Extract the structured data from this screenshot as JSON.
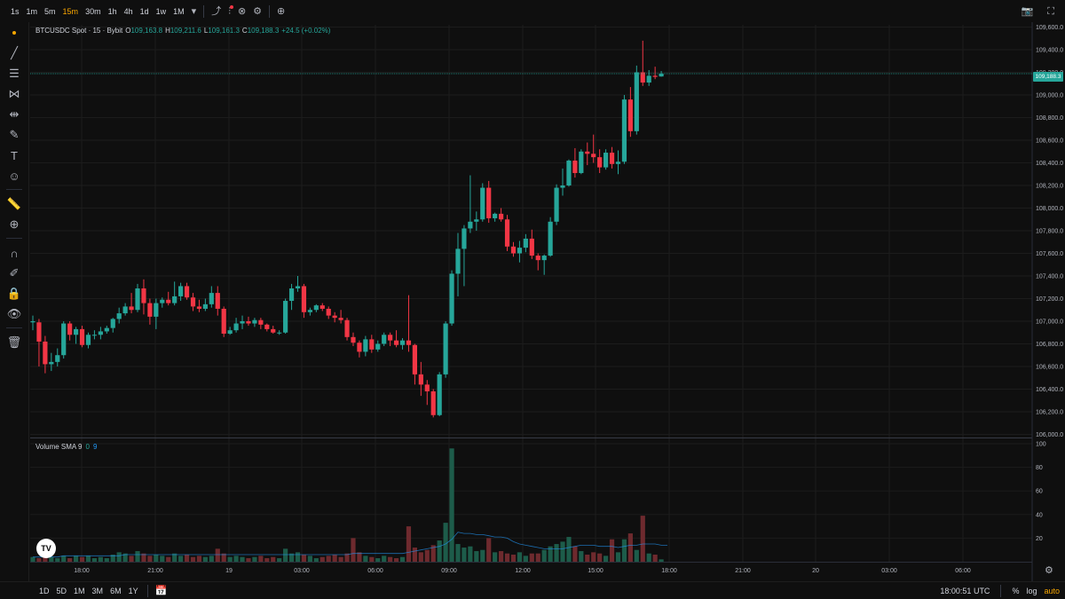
{
  "toolbar": {
    "timeframes": [
      "1s",
      "1m",
      "5m",
      "15m",
      "30m",
      "1h",
      "4h",
      "1d",
      "1w",
      "1M"
    ],
    "active_timeframe": "15m",
    "timeframe_dropdown_icon": "chevron-down-icon",
    "icons": [
      "chart-type-icon",
      "indicators-icon",
      "compare-icon",
      "settings-icon",
      "add-icon"
    ],
    "right_icons": [
      "camera-icon",
      "fullscreen-icon"
    ]
  },
  "left_tools": [
    "crosshair-dot",
    "trend-line-icon",
    "fib-icon",
    "pattern-icon",
    "measure-icon",
    "brush-icon",
    "text-icon",
    "emoji-icon",
    "ruler-icon",
    "zoom-in-icon",
    "magnet-icon",
    "lock-draw-icon",
    "lock-icon",
    "eye-icon",
    "trash-icon"
  ],
  "legend": {
    "symbol": "BTCUSDC Spot · 15 · Bybit",
    "o_label": "O",
    "o_value": "109,163.8",
    "h_label": "H",
    "h_value": "109,211.6",
    "l_label": "L",
    "l_value": "109,161.3",
    "c_label": "C",
    "c_value": "109,188.3",
    "change": "+24.5 (+0.02%)"
  },
  "volume_legend": {
    "label": "Volume SMA 9",
    "v1": "0",
    "v2": "9"
  },
  "current_price": "109,188.3",
  "colors": {
    "up": "#26a69a",
    "down": "#f23645",
    "accent": "#f7a600",
    "sma": "#2196f3"
  },
  "bottom": {
    "ranges": [
      "1D",
      "5D",
      "1M",
      "3M",
      "6M",
      "1Y"
    ],
    "time": "18:00:51 UTC",
    "percent": "%",
    "log": "log",
    "auto": "auto"
  },
  "chart_data": {
    "type": "candlestick",
    "price_axis": {
      "ticks": [
        "109,600.0",
        "109,400.0",
        "109,200.0",
        "109,000.0",
        "108,800.0",
        "108,600.0",
        "108,400.0",
        "108,200.0",
        "108,000.0",
        "107,800.0",
        "107,600.0",
        "107,400.0",
        "107,200.0",
        "107,000.0",
        "106,800.0",
        "106,600.0",
        "106,400.0",
        "106,200.0",
        "106,000.0"
      ],
      "range": [
        105980,
        109620
      ]
    },
    "volume_axis": {
      "ticks": [
        "100",
        "80",
        "60",
        "40",
        "20"
      ],
      "range": [
        0,
        100
      ]
    },
    "time_axis": [
      "18:00",
      "21:00",
      "19",
      "03:00",
      "06:00",
      "09:00",
      "12:00",
      "15:00",
      "18:00",
      "21:00",
      "20",
      "03:00",
      "06:00"
    ],
    "candles": [
      [
        106990,
        107050,
        106920,
        107000,
        4
      ],
      [
        106990,
        107020,
        106600,
        106820,
        3
      ],
      [
        106820,
        106870,
        106540,
        106620,
        5
      ],
      [
        106620,
        106720,
        106560,
        106640,
        4
      ],
      [
        106640,
        106760,
        106600,
        106700,
        3
      ],
      [
        106700,
        107000,
        106670,
        106980,
        5
      ],
      [
        106980,
        107000,
        106830,
        106880,
        3
      ],
      [
        106880,
        106950,
        106800,
        106930,
        5
      ],
      [
        106930,
        106960,
        106770,
        106790,
        4
      ],
      [
        106790,
        106900,
        106760,
        106880,
        5
      ],
      [
        106880,
        106920,
        106840,
        106880,
        3
      ],
      [
        106880,
        106950,
        106840,
        106910,
        4
      ],
      [
        106910,
        106960,
        106890,
        106940,
        3
      ],
      [
        106940,
        107030,
        106900,
        107020,
        6
      ],
      [
        107020,
        107120,
        106980,
        107070,
        8
      ],
      [
        107070,
        107160,
        107050,
        107130,
        7
      ],
      [
        107130,
        107250,
        107070,
        107100,
        5
      ],
      [
        107100,
        107330,
        107080,
        107290,
        9
      ],
      [
        107290,
        107370,
        107060,
        107160,
        7
      ],
      [
        107160,
        107200,
        106970,
        107040,
        5
      ],
      [
        107040,
        107200,
        106930,
        107160,
        6
      ],
      [
        107160,
        107210,
        107120,
        107190,
        5
      ],
      [
        107190,
        107260,
        107140,
        107160,
        4
      ],
      [
        107160,
        107350,
        107140,
        107220,
        7
      ],
      [
        107220,
        107340,
        107180,
        107310,
        5
      ],
      [
        107310,
        107340,
        107190,
        107210,
        6
      ],
      [
        107210,
        107250,
        107090,
        107130,
        4
      ],
      [
        107130,
        107190,
        107080,
        107110,
        5
      ],
      [
        107110,
        107200,
        107090,
        107150,
        4
      ],
      [
        107150,
        107310,
        107120,
        107250,
        5
      ],
      [
        107250,
        107310,
        107050,
        107110,
        11
      ],
      [
        107110,
        107130,
        106860,
        106890,
        7
      ],
      [
        106890,
        106950,
        106880,
        106920,
        4
      ],
      [
        106920,
        107030,
        106900,
        106980,
        5
      ],
      [
        106980,
        107050,
        106930,
        107000,
        4
      ],
      [
        107000,
        107040,
        106960,
        106980,
        3
      ],
      [
        106980,
        107030,
        106950,
        107010,
        4
      ],
      [
        107010,
        107030,
        106930,
        106970,
        5
      ],
      [
        106970,
        106980,
        106910,
        106930,
        3
      ],
      [
        106930,
        106960,
        106890,
        106900,
        4
      ],
      [
        106900,
        106920,
        106880,
        106900,
        3
      ],
      [
        106900,
        107200,
        106890,
        107180,
        11
      ],
      [
        107180,
        107330,
        107100,
        107290,
        7
      ],
      [
        107290,
        107400,
        107260,
        107310,
        8
      ],
      [
        107310,
        107330,
        107030,
        107080,
        6
      ],
      [
        107080,
        107120,
        107050,
        107100,
        5
      ],
      [
        107100,
        107150,
        107080,
        107140,
        3
      ],
      [
        107140,
        107160,
        107090,
        107110,
        4
      ],
      [
        107110,
        107130,
        107020,
        107050,
        5
      ],
      [
        107050,
        107080,
        106990,
        107030,
        6
      ],
      [
        107030,
        107100,
        106980,
        107010,
        4
      ],
      [
        107010,
        107030,
        106830,
        106860,
        7
      ],
      [
        106860,
        106900,
        106780,
        106810,
        20
      ],
      [
        106810,
        106830,
        106680,
        106730,
        8
      ],
      [
        106730,
        106870,
        106690,
        106840,
        5
      ],
      [
        106840,
        106880,
        106720,
        106750,
        4
      ],
      [
        106750,
        106830,
        106730,
        106800,
        3
      ],
      [
        106800,
        106900,
        106780,
        106880,
        5
      ],
      [
        106880,
        106900,
        106780,
        106830,
        4
      ],
      [
        106830,
        106920,
        106770,
        106790,
        3
      ],
      [
        106790,
        106850,
        106750,
        106830,
        4
      ],
      [
        106830,
        107230,
        106730,
        106790,
        30
      ],
      [
        106790,
        106800,
        106440,
        106530,
        12
      ],
      [
        106530,
        106640,
        106340,
        106440,
        8
      ],
      [
        106440,
        106480,
        106260,
        106380,
        10
      ],
      [
        106380,
        106400,
        106150,
        106170,
        14
      ],
      [
        106170,
        106550,
        106160,
        106530,
        18
      ],
      [
        106530,
        107000,
        106500,
        106980,
        33
      ],
      [
        106980,
        107450,
        106960,
        107420,
        96
      ],
      [
        107420,
        107780,
        107220,
        107640,
        15
      ],
      [
        107640,
        107850,
        107310,
        107820,
        12
      ],
      [
        107820,
        108290,
        107780,
        107880,
        13
      ],
      [
        107880,
        107970,
        107800,
        107900,
        9
      ],
      [
        107900,
        108220,
        107880,
        108180,
        10
      ],
      [
        108180,
        108240,
        107870,
        107910,
        20
      ],
      [
        107910,
        107960,
        107880,
        107950,
        8
      ],
      [
        107950,
        108000,
        107880,
        107900,
        9
      ],
      [
        107900,
        107940,
        107620,
        107660,
        7
      ],
      [
        107660,
        107700,
        107570,
        107600,
        6
      ],
      [
        107600,
        107710,
        107520,
        107650,
        8
      ],
      [
        107650,
        107770,
        107610,
        107730,
        5
      ],
      [
        107730,
        107810,
        107550,
        107580,
        7
      ],
      [
        107580,
        107600,
        107450,
        107540,
        7
      ],
      [
        107540,
        107590,
        107410,
        107580,
        10
      ],
      [
        107580,
        107920,
        107570,
        107880,
        13
      ],
      [
        107880,
        108210,
        107850,
        108180,
        15
      ],
      [
        108180,
        108350,
        108110,
        108200,
        17
      ],
      [
        108200,
        108430,
        108190,
        108420,
        21
      ],
      [
        108420,
        108530,
        108270,
        108310,
        13
      ],
      [
        108310,
        108520,
        108300,
        108500,
        9
      ],
      [
        108500,
        108580,
        108380,
        108480,
        6
      ],
      [
        108480,
        108650,
        108400,
        108450,
        8
      ],
      [
        108450,
        108520,
        108310,
        108360,
        7
      ],
      [
        108360,
        108520,
        108340,
        108490,
        5
      ],
      [
        108490,
        108540,
        108350,
        108390,
        19
      ],
      [
        108390,
        108510,
        108300,
        108410,
        8
      ],
      [
        108410,
        109000,
        108390,
        108960,
        19
      ],
      [
        108960,
        109070,
        108630,
        108680,
        24
      ],
      [
        108680,
        109260,
        108650,
        109200,
        10
      ],
      [
        109200,
        109480,
        109080,
        109110,
        39
      ],
      [
        109110,
        109220,
        109080,
        109170,
        7
      ],
      [
        109170,
        109250,
        109140,
        109160,
        6
      ],
      [
        109163.8,
        109211.6,
        109161.3,
        109188.3,
        2
      ]
    ],
    "sma": [
      4,
      4,
      4,
      4,
      4,
      5,
      5,
      5,
      5,
      5,
      5,
      5,
      5,
      5,
      5,
      6,
      6,
      6,
      6,
      6,
      6,
      6,
      6,
      6,
      6,
      6,
      6,
      6,
      6,
      6,
      6,
      6,
      6,
      6,
      6,
      6,
      6,
      6,
      6,
      6,
      6,
      6,
      6,
      6,
      6,
      6,
      6,
      6,
      6,
      6,
      6,
      6,
      7,
      7,
      7,
      7,
      7,
      7,
      7,
      7,
      7,
      8,
      9,
      10,
      11,
      12,
      13,
      15,
      19,
      25,
      24,
      24,
      23,
      23,
      22,
      21,
      21,
      20,
      17,
      15,
      14,
      13,
      12,
      11,
      11,
      11,
      11,
      12,
      13,
      14,
      14,
      14,
      13,
      13,
      13,
      12,
      13,
      14,
      14,
      15,
      15,
      15,
      14,
      14
    ]
  }
}
